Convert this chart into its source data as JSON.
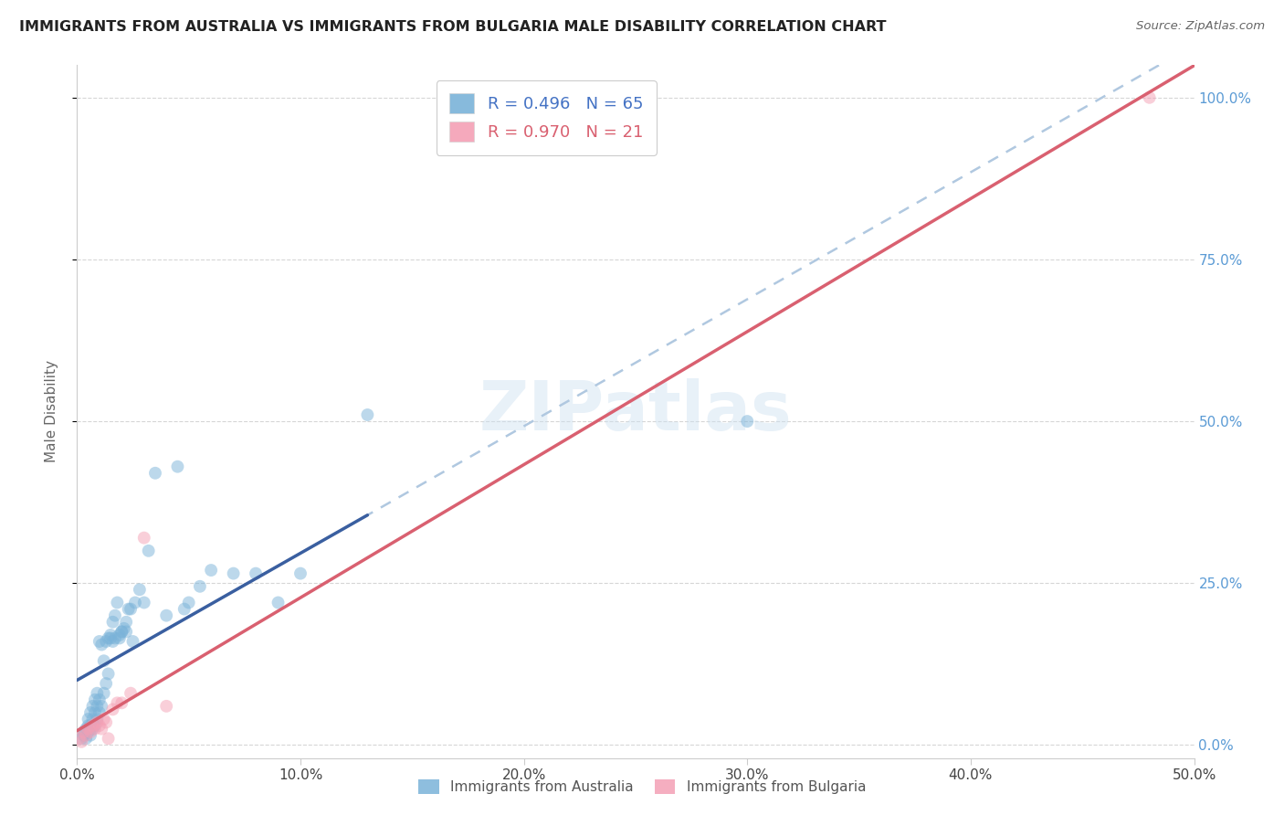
{
  "title": "IMMIGRANTS FROM AUSTRALIA VS IMMIGRANTS FROM BULGARIA MALE DISABILITY CORRELATION CHART",
  "source": "Source: ZipAtlas.com",
  "ylabel_label": "Male Disability",
  "xlim": [
    0.0,
    0.5
  ],
  "ylim": [
    -0.02,
    1.05
  ],
  "australia_points": [
    [
      0.002,
      0.01
    ],
    [
      0.003,
      0.015
    ],
    [
      0.003,
      0.02
    ],
    [
      0.004,
      0.01
    ],
    [
      0.004,
      0.025
    ],
    [
      0.005,
      0.02
    ],
    [
      0.005,
      0.03
    ],
    [
      0.005,
      0.04
    ],
    [
      0.006,
      0.015
    ],
    [
      0.006,
      0.03
    ],
    [
      0.006,
      0.05
    ],
    [
      0.007,
      0.025
    ],
    [
      0.007,
      0.04
    ],
    [
      0.007,
      0.06
    ],
    [
      0.008,
      0.03
    ],
    [
      0.008,
      0.05
    ],
    [
      0.008,
      0.07
    ],
    [
      0.009,
      0.04
    ],
    [
      0.009,
      0.06
    ],
    [
      0.009,
      0.08
    ],
    [
      0.01,
      0.05
    ],
    [
      0.01,
      0.07
    ],
    [
      0.01,
      0.16
    ],
    [
      0.011,
      0.06
    ],
    [
      0.011,
      0.155
    ],
    [
      0.012,
      0.08
    ],
    [
      0.012,
      0.13
    ],
    [
      0.013,
      0.095
    ],
    [
      0.013,
      0.16
    ],
    [
      0.014,
      0.11
    ],
    [
      0.014,
      0.165
    ],
    [
      0.015,
      0.165
    ],
    [
      0.015,
      0.17
    ],
    [
      0.016,
      0.16
    ],
    [
      0.016,
      0.19
    ],
    [
      0.017,
      0.2
    ],
    [
      0.017,
      0.165
    ],
    [
      0.018,
      0.22
    ],
    [
      0.019,
      0.165
    ],
    [
      0.019,
      0.17
    ],
    [
      0.02,
      0.175
    ],
    [
      0.02,
      0.175
    ],
    [
      0.021,
      0.18
    ],
    [
      0.022,
      0.19
    ],
    [
      0.022,
      0.175
    ],
    [
      0.023,
      0.21
    ],
    [
      0.024,
      0.21
    ],
    [
      0.025,
      0.16
    ],
    [
      0.026,
      0.22
    ],
    [
      0.028,
      0.24
    ],
    [
      0.03,
      0.22
    ],
    [
      0.032,
      0.3
    ],
    [
      0.035,
      0.42
    ],
    [
      0.04,
      0.2
    ],
    [
      0.045,
      0.43
    ],
    [
      0.048,
      0.21
    ],
    [
      0.05,
      0.22
    ],
    [
      0.055,
      0.245
    ],
    [
      0.06,
      0.27
    ],
    [
      0.07,
      0.265
    ],
    [
      0.08,
      0.265
    ],
    [
      0.09,
      0.22
    ],
    [
      0.1,
      0.265
    ],
    [
      0.13,
      0.51
    ],
    [
      0.3,
      0.5
    ]
  ],
  "bulgaria_points": [
    [
      0.001,
      0.01
    ],
    [
      0.002,
      0.005
    ],
    [
      0.003,
      0.02
    ],
    [
      0.004,
      0.015
    ],
    [
      0.005,
      0.025
    ],
    [
      0.006,
      0.02
    ],
    [
      0.007,
      0.03
    ],
    [
      0.008,
      0.025
    ],
    [
      0.009,
      0.035
    ],
    [
      0.01,
      0.03
    ],
    [
      0.011,
      0.025
    ],
    [
      0.012,
      0.04
    ],
    [
      0.013,
      0.035
    ],
    [
      0.014,
      0.01
    ],
    [
      0.016,
      0.055
    ],
    [
      0.018,
      0.065
    ],
    [
      0.02,
      0.065
    ],
    [
      0.024,
      0.08
    ],
    [
      0.03,
      0.32
    ],
    [
      0.04,
      0.06
    ],
    [
      0.48,
      1.0
    ]
  ],
  "australia_color": "#7ab3d9",
  "bulgaria_color": "#f4a0b5",
  "australia_line_color": "#3a5fa0",
  "bulgaria_line_color": "#d96070",
  "dashed_color": "#b0c8e0",
  "point_size": 100,
  "point_alpha": 0.5,
  "background_color": "#ffffff",
  "grid_color": "#cccccc",
  "legend_aus_text_color": "#4472c4",
  "legend_bul_text_color": "#d96070"
}
